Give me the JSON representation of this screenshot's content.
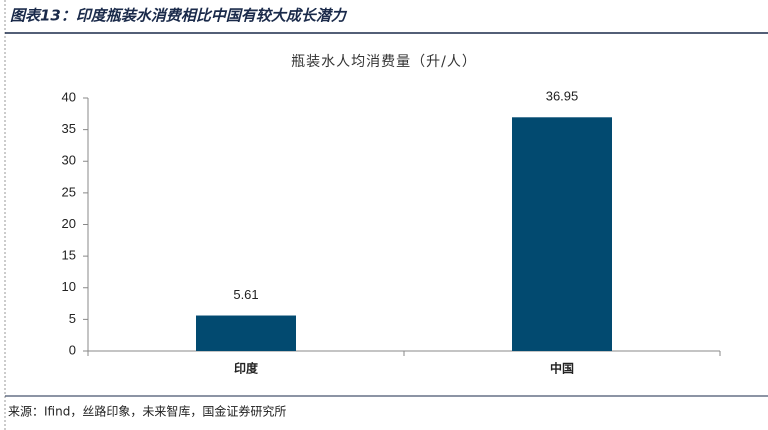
{
  "header": {
    "title": "图表13：印度瓶装水消费相比中国有较大成长潜力"
  },
  "chart_data": {
    "type": "bar",
    "title": "瓶装水人均消费量（升/人）",
    "categories": [
      "印度",
      "中国"
    ],
    "values": [
      5.61,
      36.95
    ],
    "color": "#024a70",
    "ylim": [
      0,
      40
    ],
    "yticks": [
      0,
      5,
      10,
      15,
      20,
      25,
      30,
      35,
      40
    ],
    "data_labels": true
  },
  "source": "来源：Ifind，丝路印象，未来智库，国金证券研究所"
}
